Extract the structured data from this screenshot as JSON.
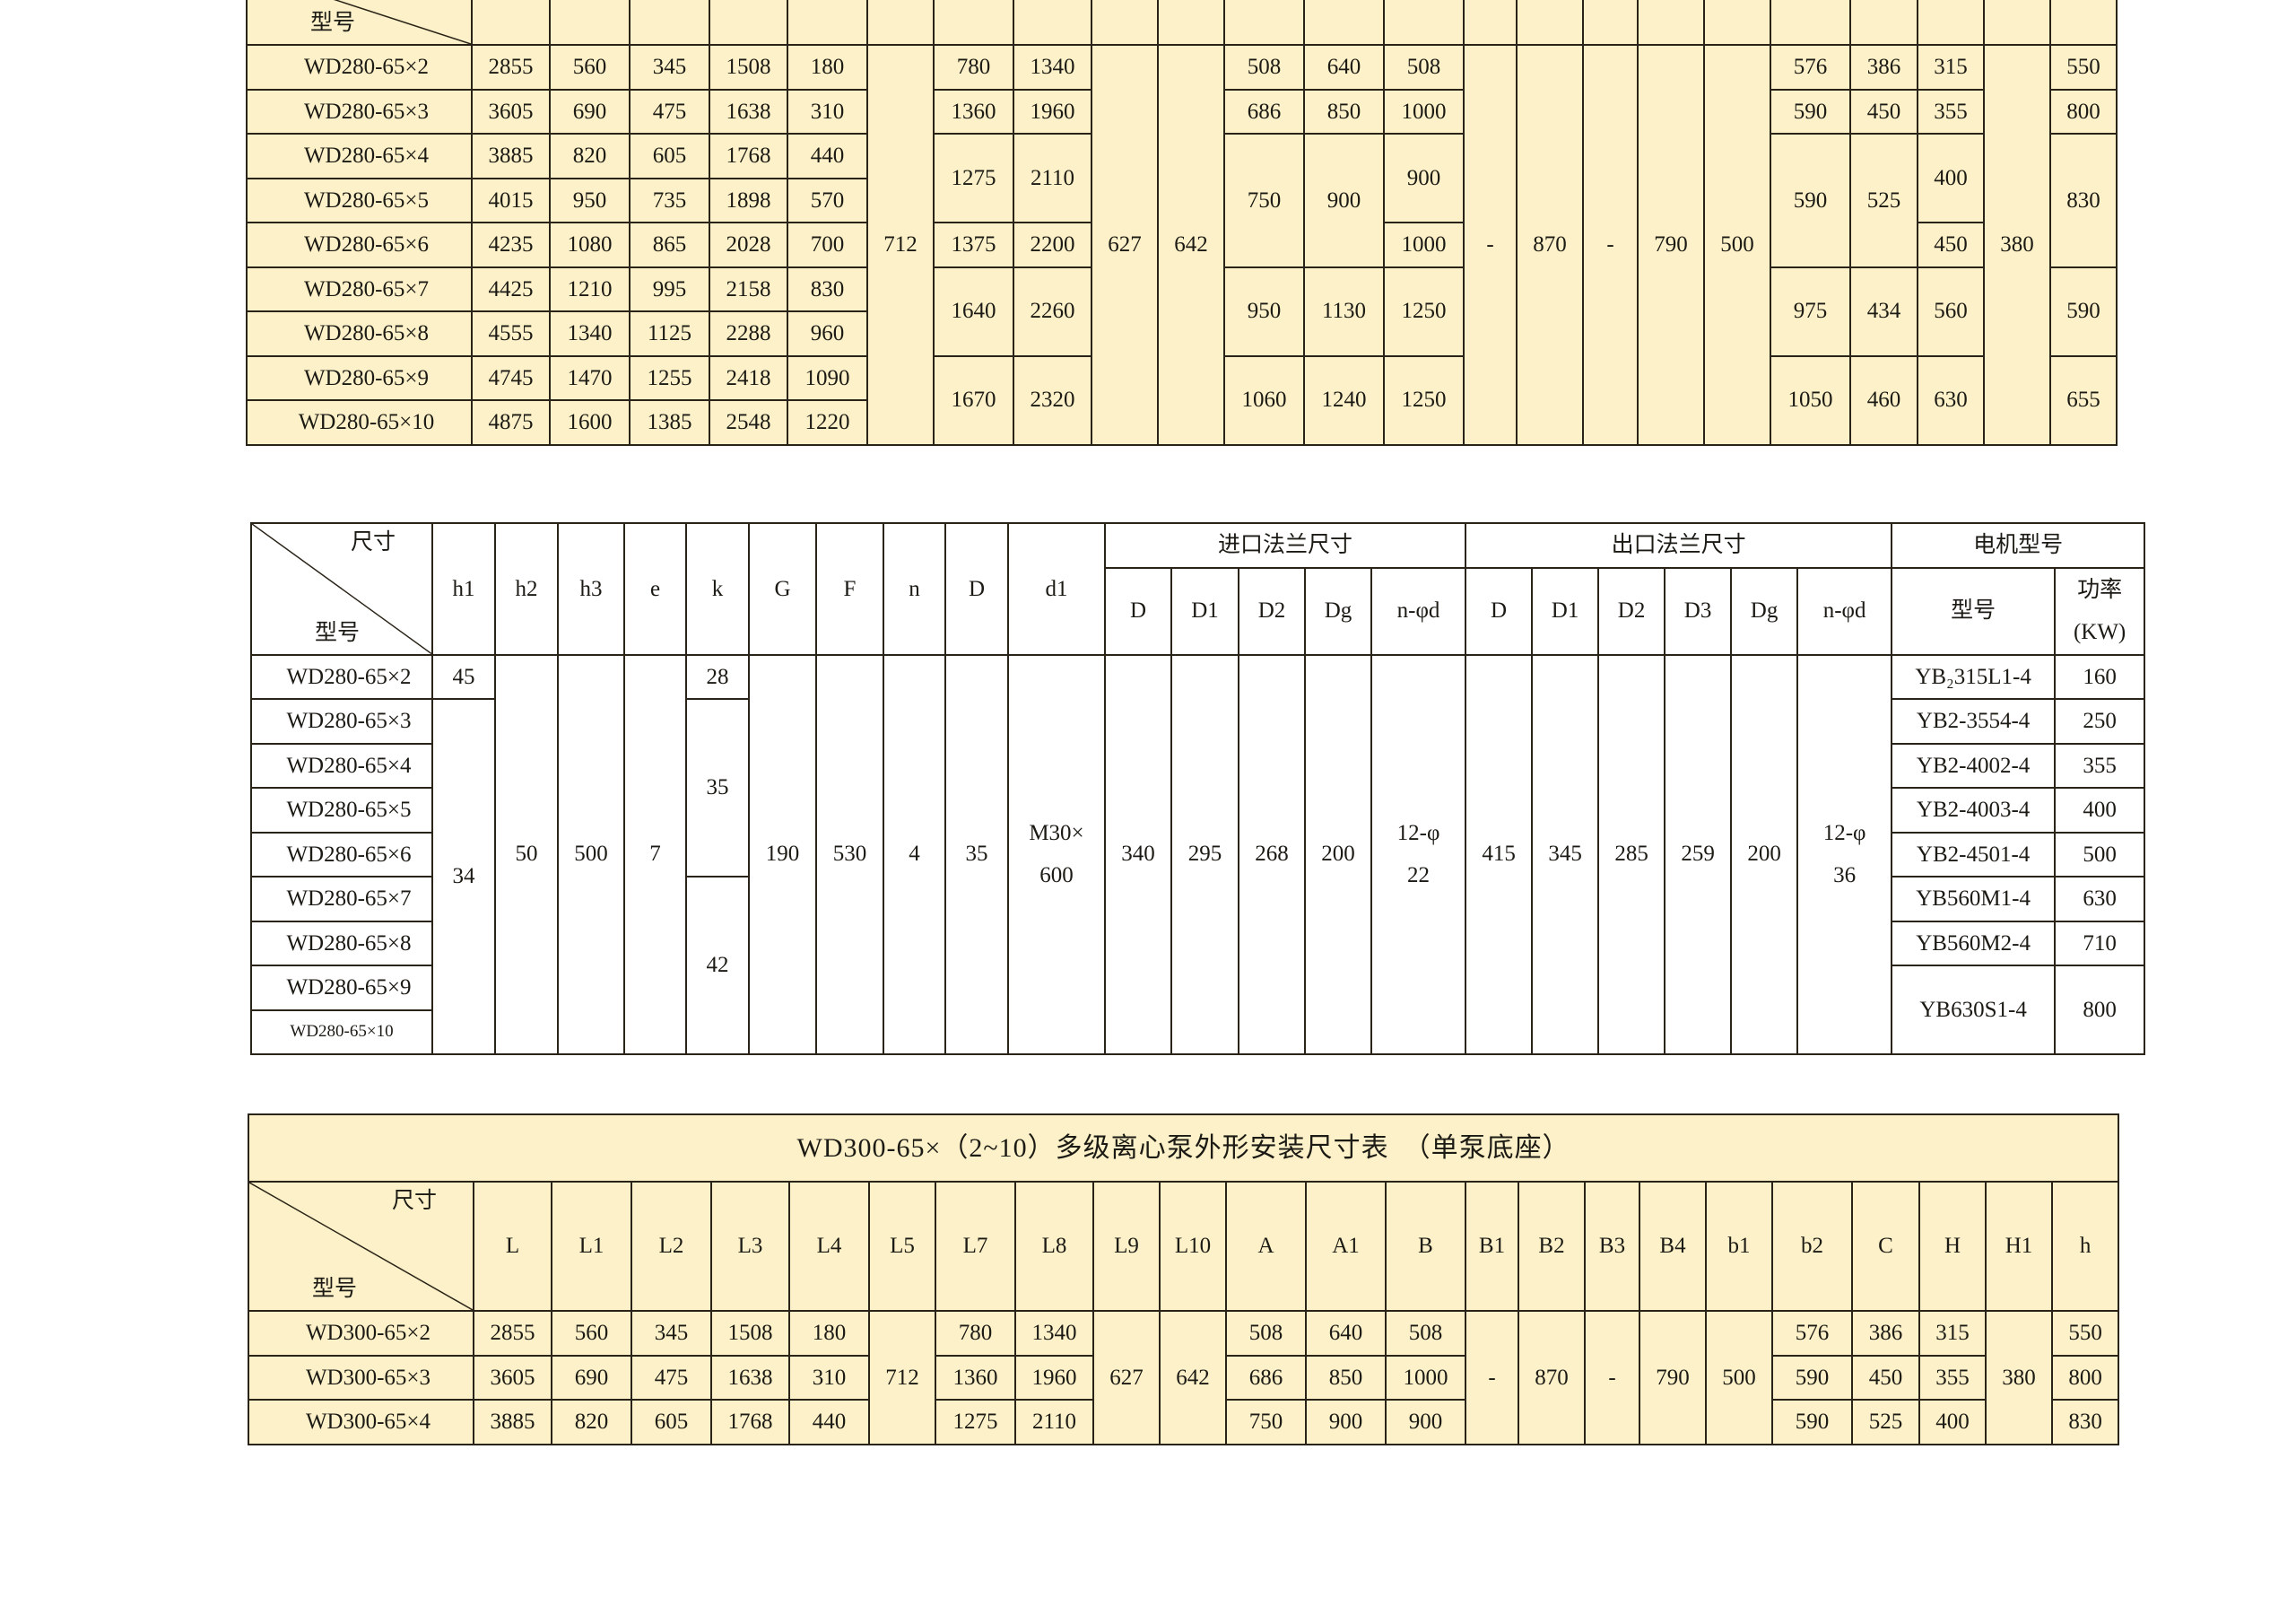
{
  "colors": {
    "table_fill": "#fcf1c8",
    "border": "#2a2418",
    "text": "#1c1a14"
  },
  "table1": {
    "corner": {
      "bottom": "型号"
    },
    "rows": [
      [
        "WD280-65×2",
        "2855",
        "560",
        "345",
        "1508",
        "180",
        {
          "v": "712",
          "rs": 9
        },
        "780",
        "1340",
        {
          "v": "627",
          "rs": 9
        },
        {
          "v": "642",
          "rs": 9
        },
        "508",
        "640",
        "508",
        {
          "v": "-",
          "rs": 9
        },
        {
          "v": "870",
          "rs": 9
        },
        {
          "v": "-",
          "rs": 9
        },
        {
          "v": "790",
          "rs": 9
        },
        {
          "v": "500",
          "rs": 9
        },
        "576",
        "386",
        "315",
        {
          "v": "380",
          "rs": 9
        },
        "550"
      ],
      [
        "WD280-65×3",
        "3605",
        "690",
        "475",
        "1638",
        "310",
        "1360",
        "1960",
        "686",
        "850",
        "1000",
        "590",
        "450",
        "355",
        "800"
      ],
      [
        "WD280-65×4",
        "3885",
        "820",
        "605",
        "1768",
        "440",
        {
          "v": "1275",
          "rs": 2
        },
        {
          "v": "2110",
          "rs": 2
        },
        {
          "v": "750",
          "rs": 3
        },
        {
          "v": "900",
          "rs": 3
        },
        {
          "v": "900",
          "rs": 2
        },
        {
          "v": "590",
          "rs": 3
        },
        {
          "v": "525",
          "rs": 3
        },
        {
          "v": "400",
          "rs": 2
        },
        {
          "v": "830",
          "rs": 3
        }
      ],
      [
        "WD280-65×5",
        "4015",
        "950",
        "735",
        "1898",
        "570"
      ],
      [
        "WD280-65×6",
        "4235",
        "1080",
        "865",
        "2028",
        "700",
        "1375",
        "2200",
        "1000",
        "450"
      ],
      [
        "WD280-65×7",
        "4425",
        "1210",
        "995",
        "2158",
        "830",
        {
          "v": "1640",
          "rs": 2
        },
        {
          "v": "2260",
          "rs": 2
        },
        {
          "v": "950",
          "rs": 2
        },
        {
          "v": "1130",
          "rs": 2
        },
        {
          "v": "1250",
          "rs": 2
        },
        {
          "v": "975",
          "rs": 2
        },
        {
          "v": "434",
          "rs": 2
        },
        {
          "v": "560",
          "rs": 2
        },
        {
          "v": "590",
          "rs": 2
        }
      ],
      [
        "WD280-65×8",
        "4555",
        "1340",
        "1125",
        "2288",
        "960"
      ],
      [
        "WD280-65×9",
        "4745",
        "1470",
        "1255",
        "2418",
        "1090",
        {
          "v": "1670",
          "rs": 2
        },
        {
          "v": "2320",
          "rs": 2
        },
        {
          "v": "1060",
          "rs": 2
        },
        {
          "v": "1240",
          "rs": 2
        },
        {
          "v": "1250",
          "rs": 2
        },
        {
          "v": "1050",
          "rs": 2
        },
        {
          "v": "460",
          "rs": 2
        },
        {
          "v": "630",
          "rs": 2
        },
        {
          "v": "655",
          "rs": 2
        }
      ],
      [
        "WD280-65×10",
        "4875",
        "1600",
        "1385",
        "2548",
        "1220"
      ]
    ]
  },
  "table2": {
    "corner": {
      "top": "尺寸",
      "bottom": "型号"
    },
    "header": [
      [
        {
          "v": "h1",
          "rs": 2
        },
        {
          "v": "h2",
          "rs": 2
        },
        {
          "v": "h3",
          "rs": 2
        },
        {
          "v": "e",
          "rs": 2
        },
        {
          "v": "k",
          "rs": 2
        },
        {
          "v": "G",
          "rs": 2
        },
        {
          "v": "F",
          "rs": 2
        },
        {
          "v": "n",
          "rs": 2
        },
        {
          "v": "D",
          "rs": 2
        },
        {
          "v": "d1",
          "rs": 2
        },
        {
          "v": "进口法兰尺寸",
          "cs": 5
        },
        {
          "v": "出口法兰尺寸",
          "cs": 6
        },
        {
          "v": "电机型号",
          "cs": 2
        }
      ],
      [
        "D",
        "D1",
        "D2",
        "Dg",
        "n-φd",
        "D",
        "D1",
        "D2",
        "D3",
        "Dg",
        "n-φd",
        "型号",
        "功率\n(KW)"
      ]
    ],
    "rows": [
      [
        "WD280-65×2",
        "45",
        {
          "v": "50",
          "rs": 9
        },
        {
          "v": "500",
          "rs": 9
        },
        {
          "v": "7",
          "rs": 9
        },
        "28",
        {
          "v": "190",
          "rs": 9
        },
        {
          "v": "530",
          "rs": 9
        },
        {
          "v": "4",
          "rs": 9
        },
        {
          "v": "35",
          "rs": 9
        },
        {
          "v": "M30×\n600",
          "rs": 9
        },
        {
          "v": "340",
          "rs": 9
        },
        {
          "v": "295",
          "rs": 9
        },
        {
          "v": "268",
          "rs": 9
        },
        {
          "v": "200",
          "rs": 9
        },
        {
          "v": "12-φ\n22",
          "rs": 9
        },
        {
          "v": "415",
          "rs": 9
        },
        {
          "v": "345",
          "rs": 9
        },
        {
          "v": "285",
          "rs": 9
        },
        {
          "v": "259",
          "rs": 9
        },
        {
          "v": "200",
          "rs": 9
        },
        {
          "v": "12-φ\n36",
          "rs": 9
        },
        "YB₂315L1-4",
        "160"
      ],
      [
        "WD280-65×3",
        {
          "v": "34",
          "rs": 8
        },
        {
          "v": "35",
          "rs": 4
        },
        "YB2-3554-4",
        "250"
      ],
      [
        "WD280-65×4",
        "YB2-4002-4",
        "355"
      ],
      [
        "WD280-65×5",
        "YB2-4003-4",
        "400"
      ],
      [
        "WD280-65×6",
        "YB2-4501-4",
        "500"
      ],
      [
        "WD280-65×7",
        {
          "v": "42",
          "rs": 4
        },
        "YB560M1-4",
        "630"
      ],
      [
        "WD280-65×8",
        "YB560M2-4",
        "710"
      ],
      [
        "WD280-65×9",
        {
          "v": "YB630S1-4",
          "rs": 2
        },
        {
          "v": "800",
          "rs": 2
        }
      ],
      [
        "WD280-65×10"
      ]
    ]
  },
  "table3": {
    "title": "WD300-65×（2~10）多级离心泵外形安装尺寸表　（单泵底座）",
    "corner": {
      "top": "尺寸",
      "bottom": "型号"
    },
    "header": [
      [
        "L",
        "L1",
        "L2",
        "L3",
        "L4",
        "L5",
        "L7",
        "L8",
        "L9",
        "L10",
        "A",
        "A1",
        "B",
        "B1",
        "B2",
        "B3",
        "B4",
        "b1",
        "b2",
        "C",
        "H",
        "H1",
        "h"
      ]
    ],
    "rows": [
      [
        "WD300-65×2",
        "2855",
        "560",
        "345",
        "1508",
        "180",
        {
          "v": "712",
          "rs": 3
        },
        "780",
        "1340",
        {
          "v": "627",
          "rs": 3
        },
        {
          "v": "642",
          "rs": 3
        },
        "508",
        "640",
        "508",
        {
          "v": "-",
          "rs": 3
        },
        {
          "v": "870",
          "rs": 3
        },
        {
          "v": "-",
          "rs": 3
        },
        {
          "v": "790",
          "rs": 3
        },
        {
          "v": "500",
          "rs": 3
        },
        "576",
        "386",
        "315",
        {
          "v": "380",
          "rs": 3
        },
        "550"
      ],
      [
        "WD300-65×3",
        "3605",
        "690",
        "475",
        "1638",
        "310",
        "1360",
        "1960",
        "686",
        "850",
        "1000",
        "590",
        "450",
        "355",
        "800"
      ],
      [
        "WD300-65×4",
        "3885",
        "820",
        "605",
        "1768",
        "440",
        "1275",
        "2110",
        "750",
        "900",
        "900",
        "590",
        "525",
        "400",
        "830"
      ]
    ]
  }
}
